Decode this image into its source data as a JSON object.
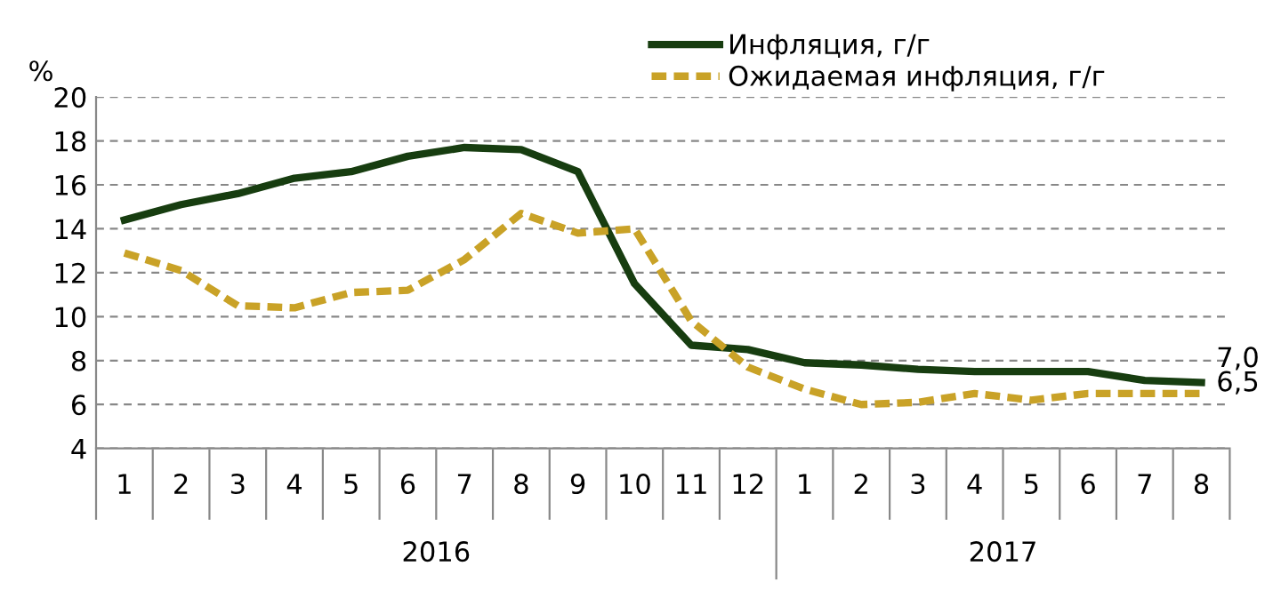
{
  "chart_data": {
    "type": "line",
    "ylabel": "%",
    "categories": [
      "1",
      "2",
      "3",
      "4",
      "5",
      "6",
      "7",
      "8",
      "9",
      "10",
      "11",
      "12",
      "1",
      "2",
      "3",
      "4",
      "5",
      "6",
      "7",
      "8"
    ],
    "series": [
      {
        "name": "Инфляция, г/г",
        "color": "#173d10",
        "line_style": "solid",
        "values": [
          14.4,
          15.1,
          15.6,
          16.3,
          16.6,
          17.3,
          17.7,
          17.6,
          16.6,
          11.5,
          8.7,
          8.5,
          7.9,
          7.8,
          7.6,
          7.5,
          7.5,
          7.5,
          7.1,
          7.0
        ],
        "value_labels": [
          null,
          null,
          null,
          null,
          null,
          null,
          null,
          null,
          null,
          null,
          null,
          null,
          null,
          null,
          null,
          null,
          null,
          null,
          null,
          "7,0"
        ]
      },
      {
        "name": "Ожидаемая инфляция, г/г",
        "color": "#c9a227",
        "line_style": "dashed",
        "values": [
          12.9,
          12.1,
          10.5,
          10.4,
          11.1,
          11.2,
          12.6,
          14.7,
          13.8,
          14.0,
          9.8,
          7.7,
          6.7,
          6.0,
          6.1,
          6.5,
          6.2,
          6.5,
          6.5,
          6.5
        ],
        "value_labels": [
          null,
          null,
          null,
          null,
          null,
          null,
          null,
          null,
          null,
          null,
          null,
          null,
          null,
          null,
          null,
          null,
          null,
          null,
          null,
          "6,5"
        ]
      }
    ],
    "annotations": [
      "2016",
      "2017"
    ],
    "ylim": [
      4,
      20
    ],
    "yticks": [
      4,
      6,
      8,
      10,
      12,
      14,
      16,
      18,
      20
    ],
    "grid": "y",
    "legend": "top right",
    "marker": "none"
  }
}
